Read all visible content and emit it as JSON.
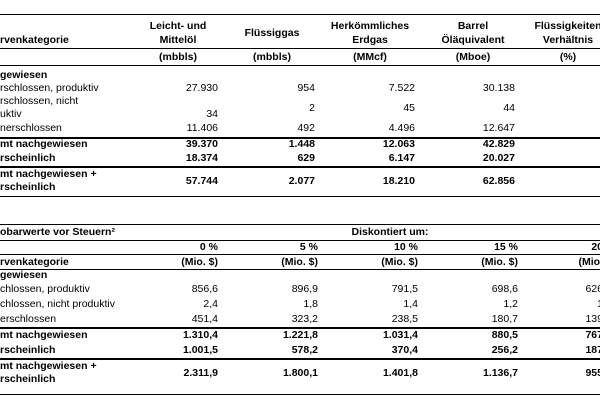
{
  "table1": {
    "category_header": "rvenkategorie",
    "columns": [
      [
        "Leicht- und",
        "Mittelöl"
      ],
      [
        "Flüssiggas"
      ],
      [
        "Herkömmliches",
        "Erdgas"
      ],
      [
        "Barrel",
        "Öläquivalent"
      ],
      [
        "Flüssigkeiten",
        "Verhältnis"
      ]
    ],
    "units": [
      "(mbbls)",
      "(mbbls)",
      "(MMcf)",
      "(Mboe)",
      "(%)"
    ],
    "rows": [
      {
        "label": [
          "gewiesen"
        ]
      },
      {
        "label": [
          "rschlossen, produktiv"
        ],
        "values": [
          "27.930",
          "954",
          "7.522",
          "30.138"
        ]
      },
      {
        "label": [
          "rschlossen, nicht",
          "uktiv"
        ],
        "values": [
          "34",
          "2",
          "45",
          "44"
        ]
      },
      {
        "label": [
          "nerschlossen"
        ],
        "values": [
          "11.406",
          "492",
          "4.496",
          "12.647"
        ]
      },
      {
        "label": [
          "mt nachgewiesen"
        ],
        "values": [
          "39.370",
          "1.448",
          "12.063",
          "42.829"
        ]
      },
      {
        "label": [
          "rscheinlich"
        ],
        "values": [
          "18.374",
          "629",
          "6.147",
          "20.027"
        ]
      },
      {
        "label": [
          "mt nachgewiesen +",
          "rscheinlich"
        ],
        "values": [
          "57.744",
          "2.077",
          "18.210",
          "62.856"
        ]
      }
    ]
  },
  "table2": {
    "title": "obarwerte vor Steuern²",
    "group_header": "Diskontiert um:",
    "rates": [
      "0 %",
      "5 %",
      "10 %",
      "15 %",
      "20"
    ],
    "category_header": "rvenkategorie",
    "units": [
      "(Mio. $)",
      "(Mio. $)",
      "(Mio. $)",
      "(Mio. $)",
      "(Mio."
    ],
    "rows": [
      {
        "label": [
          "gewiesen"
        ]
      },
      {
        "label": [
          "chlossen, produktiv"
        ],
        "values": [
          "856,6",
          "896,9",
          "791,5",
          "698,6",
          "626"
        ]
      },
      {
        "label": [
          "chlossen, nicht produktiv"
        ],
        "values": [
          "2,4",
          "1,8",
          "1,4",
          "1,2",
          "1"
        ]
      },
      {
        "label": [
          "erschlossen"
        ],
        "values": [
          "451,4",
          "323,2",
          "238,5",
          "180,7",
          "139"
        ]
      },
      {
        "label": [
          "mt nachgewiesen"
        ],
        "values": [
          "1.310,4",
          "1.221,8",
          "1.031,4",
          "880,5",
          "767"
        ]
      },
      {
        "label": [
          "rscheinlich"
        ],
        "values": [
          "1.001,5",
          "578,2",
          "370,4",
          "256,2",
          "187"
        ]
      },
      {
        "label": [
          "mt nachgewiesen +",
          "rscheinlich"
        ],
        "values": [
          "2.311,9",
          "1.800,1",
          "1.401,8",
          "1.136,7",
          "955"
        ]
      }
    ]
  }
}
